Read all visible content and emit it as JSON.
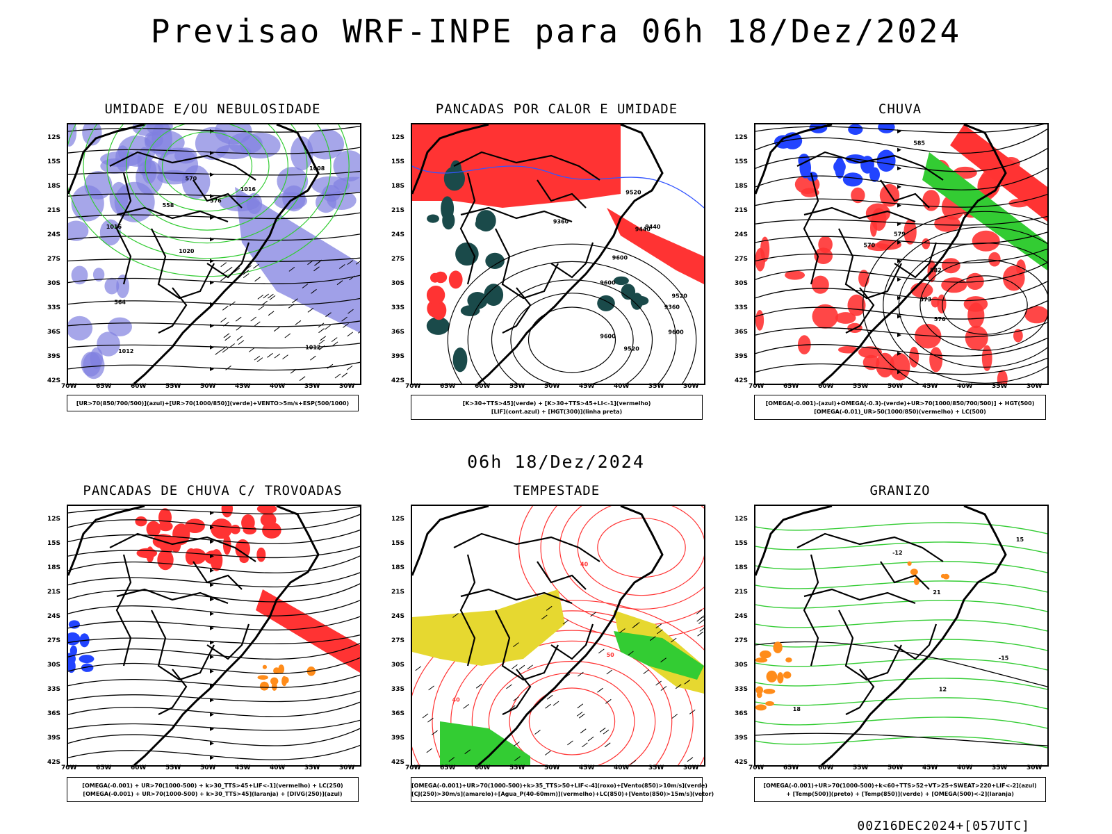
{
  "title": "Previsao WRF-INPE  para 06h 18/Dez/2024",
  "middle_title": "06h 18/Dez/2024",
  "footer": "00Z16DEC2024+[057UTC]",
  "axis": {
    "lat_labels": [
      "12S",
      "15S",
      "18S",
      "21S",
      "24S",
      "27S",
      "30S",
      "33S",
      "36S",
      "39S",
      "42S"
    ],
    "lon_labels": [
      "70W",
      "65W",
      "60W",
      "55W",
      "50W",
      "45W",
      "40W",
      "35W",
      "30W"
    ]
  },
  "colors": {
    "blue": "#8080e0",
    "green": "#33cc33",
    "red": "#ff3333",
    "yellow": "#e6d830",
    "darkteal": "#1a4a4a",
    "orange": "#ff8c1a"
  },
  "panels": [
    {
      "title": "UMIDADE E/OU NEBULOSIDADE",
      "legend": [
        "[UR>70(850/700/500)](azul)+[UR>70(1000/850)](verde)+VENTO>5m/s+ESP(500/1000)"
      ],
      "contour_labels": [
        "1012",
        "1016",
        "1008",
        "1020",
        "1016",
        "1012",
        "570",
        "576",
        "564",
        "558"
      ]
    },
    {
      "title": "PANCADAS POR CALOR E UMIDADE",
      "legend": [
        "[K>30+TTS>45](verde) + [K>30+TTS>45+LI<-1](vermelho)",
        "[LIF](cont.azul) + [HGT(300)](linha preta)"
      ],
      "contour_labels": [
        "9600",
        "9520",
        "9440",
        "9360",
        "9600",
        "9520",
        "9440",
        "9360",
        "9600",
        "9520",
        "9600"
      ]
    },
    {
      "title": "CHUVA",
      "legend": [
        "[OMEGA(-0.001)-(azul)+OMEGA(-0.3)-(verde)+UR>70(1000/850/700/500)] + HGT(500)",
        "[OMEGA(-0.01)_UR>50(1000/850)(vermelho) + LC(500)"
      ],
      "contour_labels": [
        "585",
        "579",
        "576",
        "573",
        "570",
        "582"
      ]
    },
    {
      "title": "PANCADAS DE CHUVA C/ TROVOADAS",
      "legend": [
        "[OMEGA(-0.001) + UR>70(1000-500) + k>30_TTS>45+LIF<-1](vermelho) + LC(250)",
        "[OMEGA(-0.001) + UR>70(1000-500) + k>30_TTS>45](laranja) + [DIVG(250)](azul)"
      ],
      "contour_labels": []
    },
    {
      "title": "TEMPESTADE",
      "legend": [
        "[OMEGA(-0.001)+UR>70(1000-500)+k>35_TTS>50+LIF<-4](roxo)+[Vento(850)>10m/s](verde)",
        "[CJ(250)>30m/s](amarelo)+[Agua_P(40-60mm)](vermelho)+LC(850)+[Vento(850)>15m/s](vetor)"
      ],
      "contour_labels": [
        "40",
        "50",
        "40"
      ]
    },
    {
      "title": "GRANIZO",
      "legend": [
        "[OMEGA(-0.001)+UR>70(1000-500)+k<60+TTS>52+VT>25+SWEAT>220+LIF<-2](azul)",
        "+ [Temp(500)](preto) + [Temp(850)](verde) + [OMEGA(500)<-2](laranja)"
      ],
      "contour_labels": [
        "-12",
        "12",
        "18",
        "15",
        "-15",
        "21"
      ]
    }
  ]
}
